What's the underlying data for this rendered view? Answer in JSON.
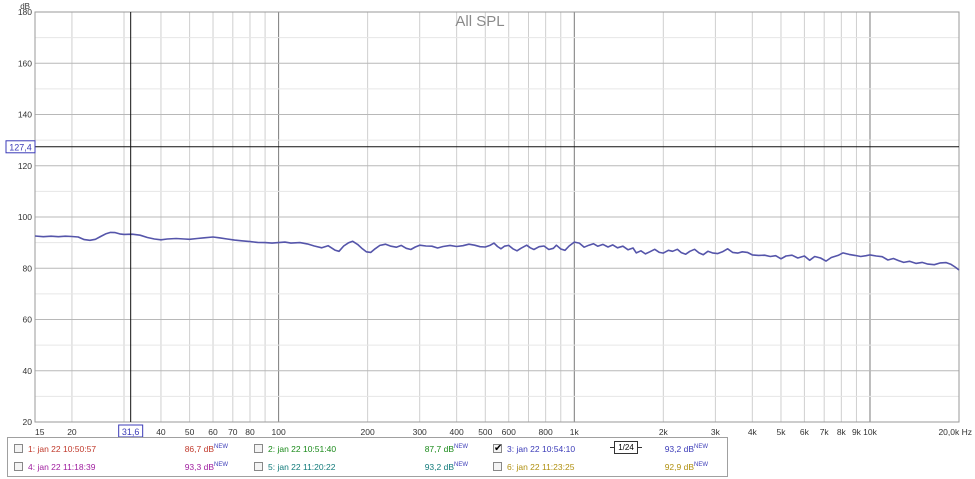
{
  "chart_data": {
    "type": "line",
    "title": "All SPL",
    "ylabel": "dB",
    "xlabel": "Hz",
    "xscale": "log",
    "xlim": [
      15,
      20000
    ],
    "ylim": [
      20,
      180
    ],
    "grid": true,
    "y_ticks": [
      "20",
      "40",
      "60",
      "80",
      "100",
      "120",
      "140",
      "160",
      "180"
    ],
    "x_ticks": [
      {
        "v": 15,
        "t": "15"
      },
      {
        "v": 20,
        "t": "20"
      },
      {
        "v": 40,
        "t": "40"
      },
      {
        "v": 50,
        "t": "50"
      },
      {
        "v": 60,
        "t": "60"
      },
      {
        "v": 70,
        "t": "70"
      },
      {
        "v": 80,
        "t": "80"
      },
      {
        "v": 100,
        "t": "100"
      },
      {
        "v": 200,
        "t": "200"
      },
      {
        "v": 300,
        "t": "300"
      },
      {
        "v": 400,
        "t": "400"
      },
      {
        "v": 500,
        "t": "500"
      },
      {
        "v": 600,
        "t": "600"
      },
      {
        "v": 800,
        "t": "800"
      },
      {
        "v": 1000,
        "t": "1k"
      },
      {
        "v": 2000,
        "t": "2k"
      },
      {
        "v": 3000,
        "t": "3k"
      },
      {
        "v": 4000,
        "t": "4k"
      },
      {
        "v": 5000,
        "t": "5k"
      },
      {
        "v": 6000,
        "t": "6k"
      },
      {
        "v": 7000,
        "t": "7k"
      },
      {
        "v": 8000,
        "t": "8k"
      },
      {
        "v": 9000,
        "t": "9k"
      },
      {
        "v": 10000,
        "t": "10k"
      },
      {
        "v": 20000,
        "t": "20,0k Hz"
      }
    ],
    "cursor": {
      "x": 31.6,
      "x_label": "31,6",
      "y": 127.4,
      "y_label": "127,4"
    },
    "series": [
      {
        "color": "#5555aa",
        "points": [
          [
            15,
            92.6
          ],
          [
            16,
            92.3
          ],
          [
            17,
            92.5
          ],
          [
            18,
            92.3
          ],
          [
            19,
            92.5
          ],
          [
            20,
            92.4
          ],
          [
            21,
            92.2
          ],
          [
            22,
            91.2
          ],
          [
            23,
            90.9
          ],
          [
            24,
            91.3
          ],
          [
            25,
            92.4
          ],
          [
            26,
            93.4
          ],
          [
            27,
            94.0
          ],
          [
            28,
            93.9
          ],
          [
            29,
            93.4
          ],
          [
            30,
            93.2
          ],
          [
            32,
            93.3
          ],
          [
            34,
            92.9
          ],
          [
            36,
            92.0
          ],
          [
            38,
            91.4
          ],
          [
            40,
            91.1
          ],
          [
            42,
            91.4
          ],
          [
            45,
            91.6
          ],
          [
            48,
            91.4
          ],
          [
            50,
            91.3
          ],
          [
            53,
            91.6
          ],
          [
            56,
            91.9
          ],
          [
            60,
            92.2
          ],
          [
            63,
            91.9
          ],
          [
            67,
            91.4
          ],
          [
            71,
            91.0
          ],
          [
            75,
            90.7
          ],
          [
            80,
            90.4
          ],
          [
            85,
            90.1
          ],
          [
            90,
            90.0
          ],
          [
            95,
            89.8
          ],
          [
            100,
            90.0
          ],
          [
            105,
            90.2
          ],
          [
            110,
            89.8
          ],
          [
            118,
            90.0
          ],
          [
            125,
            89.5
          ],
          [
            132,
            88.7
          ],
          [
            140,
            88.0
          ],
          [
            147,
            88.8
          ],
          [
            155,
            87.1
          ],
          [
            160,
            86.6
          ],
          [
            166,
            88.7
          ],
          [
            172,
            89.9
          ],
          [
            178,
            90.5
          ],
          [
            185,
            89.3
          ],
          [
            192,
            87.6
          ],
          [
            198,
            86.4
          ],
          [
            205,
            86.2
          ],
          [
            212,
            87.6
          ],
          [
            220,
            88.9
          ],
          [
            230,
            89.4
          ],
          [
            240,
            88.6
          ],
          [
            250,
            88.2
          ],
          [
            260,
            88.9
          ],
          [
            270,
            87.8
          ],
          [
            280,
            87.3
          ],
          [
            290,
            88.3
          ],
          [
            300,
            89.0
          ],
          [
            315,
            88.7
          ],
          [
            330,
            88.6
          ],
          [
            345,
            87.9
          ],
          [
            360,
            88.5
          ],
          [
            380,
            88.9
          ],
          [
            400,
            88.5
          ],
          [
            420,
            88.8
          ],
          [
            440,
            89.4
          ],
          [
            460,
            89.0
          ],
          [
            480,
            88.4
          ],
          [
            500,
            88.3
          ],
          [
            520,
            89.0
          ],
          [
            535,
            89.8
          ],
          [
            550,
            88.5
          ],
          [
            565,
            87.6
          ],
          [
            580,
            88.6
          ],
          [
            600,
            88.9
          ],
          [
            620,
            87.6
          ],
          [
            640,
            86.8
          ],
          [
            660,
            87.8
          ],
          [
            690,
            89.0
          ],
          [
            710,
            88.0
          ],
          [
            730,
            87.3
          ],
          [
            760,
            88.4
          ],
          [
            790,
            88.7
          ],
          [
            820,
            87.3
          ],
          [
            850,
            87.8
          ],
          [
            870,
            89.0
          ],
          [
            900,
            87.5
          ],
          [
            930,
            87.0
          ],
          [
            960,
            88.7
          ],
          [
            1000,
            90.2
          ],
          [
            1040,
            89.8
          ],
          [
            1080,
            88.2
          ],
          [
            1120,
            89.0
          ],
          [
            1160,
            89.6
          ],
          [
            1200,
            88.6
          ],
          [
            1250,
            89.3
          ],
          [
            1300,
            88.3
          ],
          [
            1350,
            89.1
          ],
          [
            1400,
            88.0
          ],
          [
            1460,
            88.6
          ],
          [
            1520,
            87.2
          ],
          [
            1580,
            87.9
          ],
          [
            1620,
            86.0
          ],
          [
            1680,
            86.8
          ],
          [
            1740,
            85.6
          ],
          [
            1800,
            86.4
          ],
          [
            1870,
            87.4
          ],
          [
            1940,
            86.2
          ],
          [
            2000,
            85.9
          ],
          [
            2080,
            87.0
          ],
          [
            2150,
            86.6
          ],
          [
            2230,
            87.4
          ],
          [
            2300,
            86.1
          ],
          [
            2380,
            85.5
          ],
          [
            2460,
            86.6
          ],
          [
            2550,
            87.4
          ],
          [
            2640,
            86.0
          ],
          [
            2730,
            85.3
          ],
          [
            2830,
            86.6
          ],
          [
            2930,
            86.0
          ],
          [
            3050,
            85.7
          ],
          [
            3170,
            86.4
          ],
          [
            3300,
            87.6
          ],
          [
            3430,
            86.2
          ],
          [
            3570,
            85.9
          ],
          [
            3700,
            86.4
          ],
          [
            3850,
            86.2
          ],
          [
            4000,
            85.2
          ],
          [
            4200,
            85.0
          ],
          [
            4400,
            85.1
          ],
          [
            4600,
            84.6
          ],
          [
            4800,
            84.9
          ],
          [
            5000,
            83.7
          ],
          [
            5200,
            84.8
          ],
          [
            5450,
            85.1
          ],
          [
            5700,
            84.0
          ],
          [
            6000,
            84.8
          ],
          [
            6250,
            83.1
          ],
          [
            6500,
            84.6
          ],
          [
            6800,
            84.0
          ],
          [
            7100,
            82.8
          ],
          [
            7400,
            84.2
          ],
          [
            7800,
            85.0
          ],
          [
            8100,
            86.0
          ],
          [
            8500,
            85.4
          ],
          [
            8900,
            85.0
          ],
          [
            9300,
            84.6
          ],
          [
            9700,
            84.9
          ],
          [
            10000,
            85.2
          ],
          [
            10500,
            84.8
          ],
          [
            11000,
            84.5
          ],
          [
            11500,
            83.2
          ],
          [
            12000,
            83.8
          ],
          [
            12500,
            83.0
          ],
          [
            13000,
            82.3
          ],
          [
            13600,
            82.7
          ],
          [
            14300,
            81.9
          ],
          [
            15000,
            82.3
          ],
          [
            15700,
            81.6
          ],
          [
            16500,
            81.4
          ],
          [
            17300,
            82.1
          ],
          [
            18100,
            82.2
          ],
          [
            18800,
            81.5
          ],
          [
            19400,
            80.5
          ],
          [
            20000,
            79.3
          ]
        ]
      }
    ]
  },
  "legend": {
    "items": [
      {
        "label": "1: jan 22 10:50:57",
        "value": "86,7 dB",
        "new": "NEW",
        "color": "#c0392b",
        "checked": false
      },
      {
        "label": "2: jan 22 10:51:40",
        "value": "87,7 dB",
        "new": "NEW",
        "color": "#1a8a1a",
        "checked": false
      },
      {
        "label": "3: jan 22 10:54:10",
        "value": "93,2 dB",
        "new": "NEW",
        "color": "#3b3bb8",
        "checked": true
      },
      {
        "label": "4: jan 22 11:18:39",
        "value": "93,3 dB",
        "new": "NEW",
        "color": "#a020a0",
        "checked": false
      },
      {
        "label": "5: jan 22 11:20:22",
        "value": "93,2 dB",
        "new": "NEW",
        "color": "#117a7a",
        "checked": false
      },
      {
        "label": "6: jan 22 11:23:25",
        "value": "92,9 dB",
        "new": "NEW",
        "color": "#b09010",
        "checked": false
      }
    ],
    "smoothing": "1/24"
  }
}
